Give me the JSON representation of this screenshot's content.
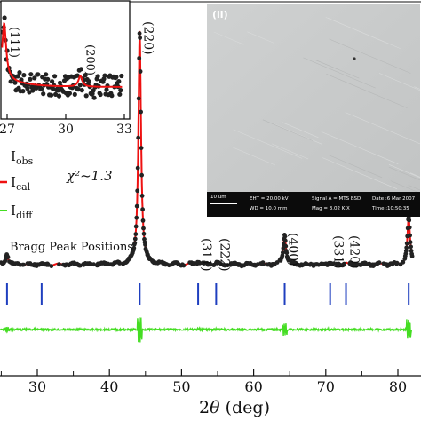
{
  "chart_data": [
    {
      "type": "line",
      "panel": "main",
      "xlabel_italic": "θ",
      "xlabel_prefix": "2",
      "xlabel_suffix": " (deg)",
      "xlim": [
        20,
        82
      ],
      "xticks": [
        30,
        40,
        50,
        60,
        70,
        80
      ],
      "xtick_labels": [
        "30",
        "40",
        "50",
        "60",
        "70",
        "80"
      ],
      "chi_label": "χ²~1.3",
      "bragg_label": "Bragg Peak Positions",
      "legend": [
        {
          "key": "obs",
          "main": "I",
          "sub": "obs"
        },
        {
          "key": "cal",
          "main": "I",
          "sub": "cal"
        },
        {
          "key": "diff",
          "main": "I",
          "sub": "diff"
        }
      ],
      "colors": {
        "obs": "#222222",
        "cal": "#ee1111",
        "diff": "#44dd22",
        "bragg": "#1f3fbf"
      },
      "peaks": [
        {
          "label": "(111)",
          "position": 25.8,
          "height": 0.045,
          "show_label": false
        },
        {
          "label": "(200)",
          "position": 30.6,
          "height": 0.0,
          "show_label": false
        },
        {
          "label": "(220)",
          "position": 44.2,
          "height": 1.0,
          "show_label": true
        },
        {
          "label": "(311)",
          "position": 52.3,
          "height": 0.012,
          "show_label": true
        },
        {
          "label": "(222)",
          "position": 54.8,
          "height": 0.008,
          "show_label": true
        },
        {
          "label": "(400)",
          "position": 64.3,
          "height": 0.13,
          "show_label": true
        },
        {
          "label": "(331)",
          "position": 70.6,
          "height": 0.01,
          "show_label": true
        },
        {
          "label": "(420)",
          "position": 72.8,
          "height": 0.01,
          "show_label": true
        },
        {
          "label": "",
          "position": 81.5,
          "height": 0.2,
          "show_label": false
        }
      ]
    },
    {
      "type": "scatter",
      "panel": "inset",
      "xlim": [
        26.5,
        33
      ],
      "xticks": [
        27,
        30,
        33
      ],
      "xtick_labels": [
        "27",
        "30",
        "33"
      ],
      "peak_labels": [
        {
          "label": "(111)",
          "position": 26.9
        },
        {
          "label": "(200)",
          "position": 30.8
        }
      ]
    }
  ],
  "sem": {
    "panel_label": "(ii)",
    "scale": "10 um",
    "eht": "EHT = 20.00 kV",
    "wd": "WD = 10.0 mm",
    "signal": "Signal A = MTS BSD",
    "mag": "Mag = 3.02 K X",
    "date": "Date :6 Mar 2007",
    "time": "Time :10:50:35"
  }
}
